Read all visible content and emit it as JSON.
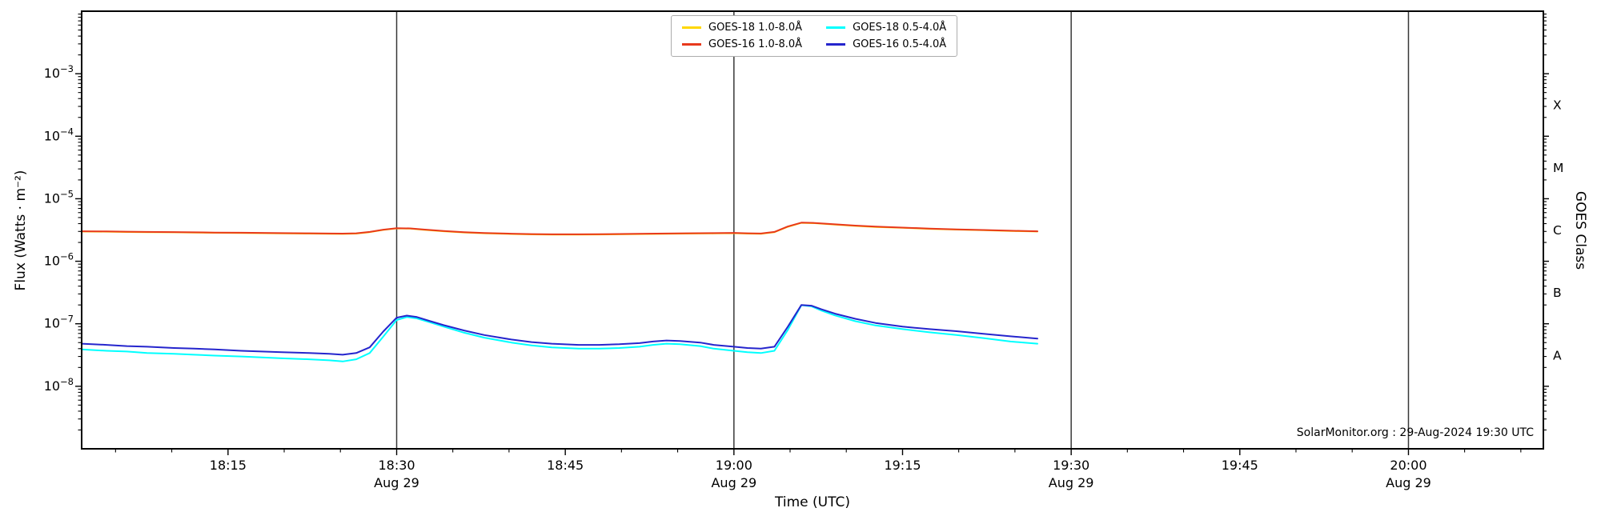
{
  "figure": {
    "watermark": "SolarMonitor.org : 29-Aug-2024 19:30 UTC"
  },
  "chart_data": {
    "type": "line",
    "title": "",
    "xlabel": "Time (UTC)",
    "ylabel_left": "Flux (Watts · m⁻²)",
    "ylabel_right": "GOES Class",
    "x_unit": "decimal_hours_utc",
    "xlim": [
      18.033,
      20.2
    ],
    "ylim_log10": [
      -9,
      -2
    ],
    "yscale": "log",
    "grid": "vertical-lines-only",
    "legend_position": "top-center",
    "x_major_ticks": [
      {
        "t": 18.25,
        "label": "18:15",
        "date": ""
      },
      {
        "t": 18.5,
        "label": "18:30",
        "date": "Aug 29"
      },
      {
        "t": 18.75,
        "label": "18:45",
        "date": ""
      },
      {
        "t": 19.0,
        "label": "19:00",
        "date": "Aug 29"
      },
      {
        "t": 19.25,
        "label": "19:15",
        "date": ""
      },
      {
        "t": 19.5,
        "label": "19:30",
        "date": "Aug 29"
      },
      {
        "t": 19.75,
        "label": "19:45",
        "date": ""
      },
      {
        "t": 20.0,
        "label": "20:00",
        "date": "Aug 29"
      }
    ],
    "x_minor_step_hours": 0.083333,
    "y_major_ticks": [
      {
        "exp": -3,
        "label": "10⁻³"
      },
      {
        "exp": -4,
        "label": "10⁻⁴"
      },
      {
        "exp": -5,
        "label": "10⁻⁵"
      },
      {
        "exp": -6,
        "label": "10⁻⁶"
      },
      {
        "exp": -7,
        "label": "10⁻⁷"
      },
      {
        "exp": -8,
        "label": "10⁻⁸"
      }
    ],
    "right_axis_classes": [
      {
        "label": "X",
        "log10_center": -3.5
      },
      {
        "label": "M",
        "log10_center": -4.5
      },
      {
        "label": "C",
        "log10_center": -5.5
      },
      {
        "label": "B",
        "log10_center": -6.5
      },
      {
        "label": "A",
        "log10_center": -7.5
      }
    ],
    "vlines": [
      18.5,
      19.0,
      19.5,
      20.0
    ],
    "vline_color": "#383838",
    "series": [
      {
        "name": "GOES-18 1.0-8.0Å",
        "color": "#ffd700",
        "points": [
          [
            18.033,
            2.99e-06
          ],
          [
            18.07,
            2.97e-06
          ],
          [
            18.1,
            2.94e-06
          ],
          [
            18.13,
            2.92e-06
          ],
          [
            18.17,
            2.9e-06
          ],
          [
            18.2,
            2.87e-06
          ],
          [
            18.23,
            2.85e-06
          ],
          [
            18.27,
            2.83e-06
          ],
          [
            18.3,
            2.81e-06
          ],
          [
            18.33,
            2.79e-06
          ],
          [
            18.37,
            2.77e-06
          ],
          [
            18.4,
            2.75e-06
          ],
          [
            18.42,
            2.74e-06
          ],
          [
            18.44,
            2.77e-06
          ],
          [
            18.46,
            2.92e-06
          ],
          [
            18.48,
            3.17e-06
          ],
          [
            18.5,
            3.35e-06
          ],
          [
            18.52,
            3.32e-06
          ],
          [
            18.54,
            3.19e-06
          ],
          [
            18.57,
            3.02e-06
          ],
          [
            18.6,
            2.89e-06
          ],
          [
            18.63,
            2.8e-06
          ],
          [
            18.67,
            2.73e-06
          ],
          [
            18.7,
            2.69e-06
          ],
          [
            18.73,
            2.67e-06
          ],
          [
            18.77,
            2.67e-06
          ],
          [
            18.8,
            2.68e-06
          ],
          [
            18.83,
            2.7e-06
          ],
          [
            18.87,
            2.73e-06
          ],
          [
            18.9,
            2.75e-06
          ],
          [
            18.93,
            2.77e-06
          ],
          [
            18.97,
            2.79e-06
          ],
          [
            19.0,
            2.81e-06
          ],
          [
            19.02,
            2.77e-06
          ],
          [
            19.04,
            2.75e-06
          ],
          [
            19.06,
            2.92e-06
          ],
          [
            19.08,
            3.56e-06
          ],
          [
            19.1,
            4.11e-06
          ],
          [
            19.12,
            4.06e-06
          ],
          [
            19.15,
            3.86e-06
          ],
          [
            19.18,
            3.68e-06
          ],
          [
            19.21,
            3.54e-06
          ],
          [
            19.25,
            3.42e-06
          ],
          [
            19.29,
            3.3e-06
          ],
          [
            19.33,
            3.21e-06
          ],
          [
            19.37,
            3.13e-06
          ],
          [
            19.41,
            3.05e-06
          ],
          [
            19.45,
            2.99e-06
          ]
        ]
      },
      {
        "name": "GOES-16 1.0-8.0Å",
        "color": "#e8391c",
        "points": [
          [
            18.033,
            3.02e-06
          ],
          [
            18.07,
            3e-06
          ],
          [
            18.1,
            2.97e-06
          ],
          [
            18.13,
            2.95e-06
          ],
          [
            18.17,
            2.93e-06
          ],
          [
            18.2,
            2.9e-06
          ],
          [
            18.23,
            2.88e-06
          ],
          [
            18.27,
            2.86e-06
          ],
          [
            18.3,
            2.84e-06
          ],
          [
            18.33,
            2.82e-06
          ],
          [
            18.37,
            2.8e-06
          ],
          [
            18.4,
            2.78e-06
          ],
          [
            18.42,
            2.77e-06
          ],
          [
            18.44,
            2.8e-06
          ],
          [
            18.46,
            2.95e-06
          ],
          [
            18.48,
            3.2e-06
          ],
          [
            18.5,
            3.38e-06
          ],
          [
            18.52,
            3.35e-06
          ],
          [
            18.54,
            3.22e-06
          ],
          [
            18.57,
            3.05e-06
          ],
          [
            18.6,
            2.92e-06
          ],
          [
            18.63,
            2.83e-06
          ],
          [
            18.67,
            2.76e-06
          ],
          [
            18.7,
            2.72e-06
          ],
          [
            18.73,
            2.7e-06
          ],
          [
            18.77,
            2.7e-06
          ],
          [
            18.8,
            2.71e-06
          ],
          [
            18.83,
            2.73e-06
          ],
          [
            18.87,
            2.76e-06
          ],
          [
            18.9,
            2.78e-06
          ],
          [
            18.93,
            2.8e-06
          ],
          [
            18.97,
            2.82e-06
          ],
          [
            19.0,
            2.84e-06
          ],
          [
            19.02,
            2.8e-06
          ],
          [
            19.04,
            2.78e-06
          ],
          [
            19.06,
            2.95e-06
          ],
          [
            19.08,
            3.6e-06
          ],
          [
            19.1,
            4.15e-06
          ],
          [
            19.12,
            4.1e-06
          ],
          [
            19.15,
            3.9e-06
          ],
          [
            19.18,
            3.72e-06
          ],
          [
            19.21,
            3.58e-06
          ],
          [
            19.25,
            3.45e-06
          ],
          [
            19.29,
            3.33e-06
          ],
          [
            19.33,
            3.24e-06
          ],
          [
            19.37,
            3.16e-06
          ],
          [
            19.41,
            3.08e-06
          ],
          [
            19.45,
            3.02e-06
          ]
        ]
      },
      {
        "name": "GOES-18 0.5-4.0Å",
        "color": "#00ffff",
        "points": [
          [
            18.033,
            3.9e-08
          ],
          [
            18.07,
            3.7e-08
          ],
          [
            18.1,
            3.6e-08
          ],
          [
            18.13,
            3.4e-08
          ],
          [
            18.17,
            3.3e-08
          ],
          [
            18.2,
            3.2e-08
          ],
          [
            18.23,
            3.1e-08
          ],
          [
            18.27,
            3e-08
          ],
          [
            18.3,
            2.9e-08
          ],
          [
            18.33,
            2.8e-08
          ],
          [
            18.37,
            2.7e-08
          ],
          [
            18.4,
            2.6e-08
          ],
          [
            18.42,
            2.5e-08
          ],
          [
            18.44,
            2.7e-08
          ],
          [
            18.46,
            3.4e-08
          ],
          [
            18.48,
            6.2e-08
          ],
          [
            18.5,
            1.15e-07
          ],
          [
            18.515,
            1.28e-07
          ],
          [
            18.53,
            1.22e-07
          ],
          [
            18.55,
            1.05e-07
          ],
          [
            18.57,
            9e-08
          ],
          [
            18.6,
            7.2e-08
          ],
          [
            18.63,
            6e-08
          ],
          [
            18.67,
            5e-08
          ],
          [
            18.7,
            4.5e-08
          ],
          [
            18.73,
            4.2e-08
          ],
          [
            18.77,
            4e-08
          ],
          [
            18.8,
            4e-08
          ],
          [
            18.83,
            4.1e-08
          ],
          [
            18.86,
            4.3e-08
          ],
          [
            18.88,
            4.6e-08
          ],
          [
            18.9,
            4.8e-08
          ],
          [
            18.92,
            4.7e-08
          ],
          [
            18.95,
            4.4e-08
          ],
          [
            18.97,
            4e-08
          ],
          [
            19.0,
            3.7e-08
          ],
          [
            19.02,
            3.5e-08
          ],
          [
            19.04,
            3.4e-08
          ],
          [
            19.06,
            3.7e-08
          ],
          [
            19.08,
            8e-08
          ],
          [
            19.1,
            1.98e-07
          ],
          [
            19.115,
            1.9e-07
          ],
          [
            19.13,
            1.62e-07
          ],
          [
            19.15,
            1.36e-07
          ],
          [
            19.18,
            1.1e-07
          ],
          [
            19.21,
            9.4e-08
          ],
          [
            19.25,
            8.2e-08
          ],
          [
            19.29,
            7.3e-08
          ],
          [
            19.33,
            6.6e-08
          ],
          [
            19.37,
            5.9e-08
          ],
          [
            19.41,
            5.2e-08
          ],
          [
            19.45,
            4.8e-08
          ]
        ]
      },
      {
        "name": "GOES-16 0.5-4.0Å",
        "color": "#2525cd",
        "points": [
          [
            18.033,
            4.8e-08
          ],
          [
            18.07,
            4.6e-08
          ],
          [
            18.1,
            4.4e-08
          ],
          [
            18.13,
            4.3e-08
          ],
          [
            18.17,
            4.1e-08
          ],
          [
            18.2,
            4e-08
          ],
          [
            18.23,
            3.9e-08
          ],
          [
            18.27,
            3.7e-08
          ],
          [
            18.3,
            3.6e-08
          ],
          [
            18.33,
            3.5e-08
          ],
          [
            18.37,
            3.4e-08
          ],
          [
            18.4,
            3.3e-08
          ],
          [
            18.42,
            3.2e-08
          ],
          [
            18.44,
            3.4e-08
          ],
          [
            18.46,
            4.2e-08
          ],
          [
            18.48,
            7.5e-08
          ],
          [
            18.5,
            1.25e-07
          ],
          [
            18.515,
            1.35e-07
          ],
          [
            18.53,
            1.28e-07
          ],
          [
            18.55,
            1.1e-07
          ],
          [
            18.57,
            9.5e-08
          ],
          [
            18.6,
            7.8e-08
          ],
          [
            18.63,
            6.6e-08
          ],
          [
            18.67,
            5.6e-08
          ],
          [
            18.7,
            5.1e-08
          ],
          [
            18.73,
            4.8e-08
          ],
          [
            18.77,
            4.6e-08
          ],
          [
            18.8,
            4.6e-08
          ],
          [
            18.83,
            4.7e-08
          ],
          [
            18.86,
            4.9e-08
          ],
          [
            18.88,
            5.2e-08
          ],
          [
            18.9,
            5.4e-08
          ],
          [
            18.92,
            5.3e-08
          ],
          [
            18.95,
            5e-08
          ],
          [
            18.97,
            4.6e-08
          ],
          [
            19.0,
            4.3e-08
          ],
          [
            19.02,
            4.1e-08
          ],
          [
            19.04,
            4e-08
          ],
          [
            19.06,
            4.3e-08
          ],
          [
            19.08,
            9e-08
          ],
          [
            19.1,
            2e-07
          ],
          [
            19.115,
            1.95e-07
          ],
          [
            19.13,
            1.7e-07
          ],
          [
            19.15,
            1.45e-07
          ],
          [
            19.18,
            1.2e-07
          ],
          [
            19.21,
            1.03e-07
          ],
          [
            19.25,
            9e-08
          ],
          [
            19.29,
            8.2e-08
          ],
          [
            19.33,
            7.6e-08
          ],
          [
            19.37,
            6.9e-08
          ],
          [
            19.41,
            6.3e-08
          ],
          [
            19.45,
            5.8e-08
          ]
        ]
      }
    ]
  }
}
